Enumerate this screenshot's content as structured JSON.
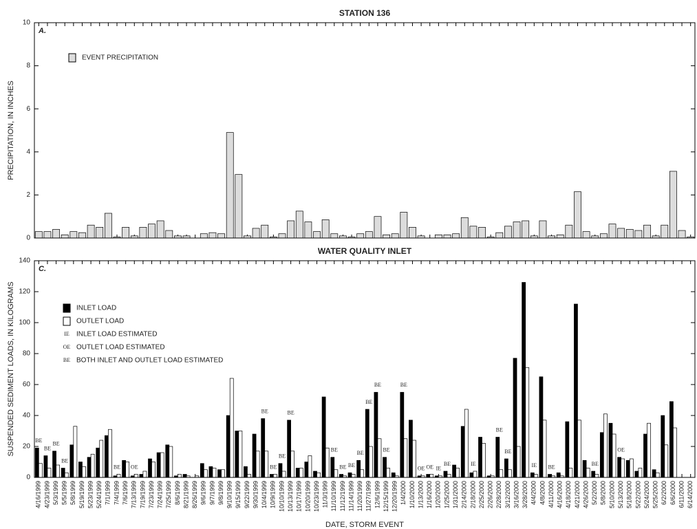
{
  "chart_data": [
    {
      "type": "bar",
      "title": "STATION 136",
      "panel_label": "A.",
      "ylabel": "PRECIPITATION, IN INCHES",
      "ylim": [
        0,
        10
      ],
      "yticks": [
        0,
        2,
        4,
        6,
        8,
        10
      ],
      "legend": "upper left",
      "series": [
        {
          "name": "EVENT PRECIPITATION",
          "color": "#dcdcdc",
          "values": [
            0.3,
            0.3,
            0.4,
            0.15,
            0.3,
            0.25,
            0.6,
            0.5,
            1.15,
            0.05,
            0.5,
            0.1,
            0.5,
            0.65,
            0.8,
            0.35,
            0.1,
            0.1,
            null,
            0.2,
            0.25,
            0.2,
            4.9,
            2.95,
            0.1,
            0.45,
            0.6,
            0.05,
            0.2,
            0.8,
            1.25,
            0.75,
            0.3,
            0.85,
            0.2,
            0.1,
            0.05,
            0.2,
            0.3,
            1.0,
            0.15,
            0.2,
            1.2,
            0.5,
            0.1,
            null,
            0.15,
            0.15,
            0.2,
            0.95,
            0.55,
            0.5,
            0.05,
            0.25,
            0.55,
            0.75,
            0.8,
            0.1,
            0.8,
            0.1,
            0.15,
            0.6,
            2.15,
            0.3,
            0.1,
            0.2,
            0.65,
            0.45,
            0.4,
            0.35,
            0.6,
            0.1,
            0.6,
            3.1,
            0.35,
            0.05
          ]
        }
      ]
    },
    {
      "type": "bar",
      "title": "WATER QUALITY INLET",
      "panel_label": "C.",
      "ylabel": "SUSPENDED SEDIMENT LOADS, IN KILOGRAMS",
      "xlabel": "DATE, STORM EVENT",
      "ylim": [
        0,
        140
      ],
      "yticks": [
        0,
        20,
        40,
        60,
        80,
        100,
        120,
        140
      ],
      "legend": "upper left",
      "categories": [
        "4/16/1999",
        "4/23/1999",
        "5/3/1999",
        "5/5/1999",
        "5/8/1999",
        "5/19/1999",
        "5/23/1999",
        "5/24/1999",
        "7/1/1999",
        "7/4/1999",
        "7/6/1999",
        "7/13/1999",
        "7/19/1999",
        "7/23/1999",
        "7/24/1999",
        "7/25/1999",
        "8/6/1999",
        "8/21/1999",
        "8/26/1999",
        "9/6/1999",
        "9/7/1999",
        "9/8/1999",
        "9/10/1999",
        "9/15/1999",
        "9/22/1999",
        "9/30/1999",
        "10/4/1999",
        "10/9/1999",
        "10/10/1999",
        "10/13/1999",
        "10/17/1999",
        "10/20/1999",
        "10/23/1999",
        "11/3/1999",
        "11/10/1999",
        "11/12/1999",
        "11/14/1999",
        "11/20/1999",
        "11/27/1999",
        "12/6/1999",
        "12/15/1999",
        "12/20/1999",
        "1/4/2000",
        "1/10/2000",
        "1/13/2000",
        "1/16/2000",
        "1/20/2000",
        "1/25/2000",
        "1/31/2000",
        "2/14/2000",
        "2/18/2000",
        "2/25/2000",
        "2/26/2000",
        "2/28/2000",
        "3/12/2000",
        "3/16/2000",
        "3/28/2000",
        "4/4/2000",
        "4/8/2000",
        "4/11/2000",
        "4/16/2000",
        "4/18/2000",
        "4/21/2000",
        "4/26/2000",
        "5/2/2000",
        "5/8/2000",
        "5/10/2000",
        "5/13/2000",
        "5/18/2000",
        "5/22/2000",
        "5/24/2000",
        "5/25/2000",
        "6/2/2000",
        "6/6/2000",
        "6/11/2000",
        "6/14/2000"
      ],
      "series": [
        {
          "name": "INLET LOAD",
          "color": "#000000",
          "values": [
            19,
            14,
            17,
            6,
            21,
            10,
            13,
            19,
            27,
            1,
            11,
            1,
            2,
            12,
            16,
            21,
            1,
            2,
            0,
            9,
            7,
            5,
            40,
            30,
            7,
            28,
            38,
            2,
            9,
            37,
            6,
            10,
            4,
            52,
            13,
            2,
            3,
            11,
            44,
            55,
            13,
            3,
            55,
            37,
            1,
            2,
            1,
            4,
            8,
            33,
            3,
            26,
            1,
            26,
            12,
            77,
            126,
            3,
            65,
            2,
            3,
            36,
            112,
            11,
            4,
            29,
            35,
            13,
            11,
            4,
            28,
            5,
            40,
            49,
            null,
            null
          ]
        },
        {
          "name": "OUTLET LOAD",
          "color": "#ffffff",
          "values": [
            9,
            6,
            8,
            3,
            33,
            7,
            15,
            24,
            31,
            2,
            10,
            2,
            4,
            10,
            16,
            20,
            2,
            1,
            1,
            5,
            6,
            5,
            64,
            30,
            2,
            17,
            17,
            2,
            4,
            17,
            6,
            14,
            3,
            19,
            5,
            1,
            2,
            5,
            20,
            25,
            6,
            1,
            25,
            24,
            1,
            2,
            1,
            2,
            6,
            44,
            4,
            22,
            1,
            5,
            5,
            20,
            71,
            2,
            37,
            1,
            1,
            6,
            37,
            6,
            2,
            41,
            28,
            12,
            12,
            6,
            35,
            3,
            21,
            32,
            null,
            null
          ]
        }
      ],
      "annotations": [
        "BE",
        "BE",
        "BE",
        "BE",
        null,
        null,
        null,
        null,
        null,
        "BE",
        null,
        "OE",
        null,
        null,
        null,
        null,
        null,
        null,
        null,
        null,
        null,
        null,
        null,
        null,
        null,
        null,
        "BE",
        "BE",
        "BE",
        "BE",
        null,
        null,
        null,
        null,
        "BE",
        "BE",
        "BE",
        "BE",
        "BE",
        "BE",
        "BE",
        null,
        "BE",
        null,
        "OE",
        "OE",
        "IE",
        "BE",
        null,
        null,
        "IE",
        null,
        null,
        "BE",
        "BE",
        null,
        null,
        "IE",
        null,
        "BE",
        null,
        null,
        null,
        null,
        "BE",
        null,
        null,
        "OE",
        null,
        null,
        null,
        null,
        null,
        null,
        null,
        null
      ],
      "legend_notes": [
        {
          "code": "IE",
          "label": "INLET LOAD ESTIMATED"
        },
        {
          "code": "OE",
          "label": "OUTLET LOAD ESTIMATED"
        },
        {
          "code": "BE",
          "label": "BOTH INLET AND OUTLET LOAD ESTIMATED"
        }
      ]
    }
  ]
}
